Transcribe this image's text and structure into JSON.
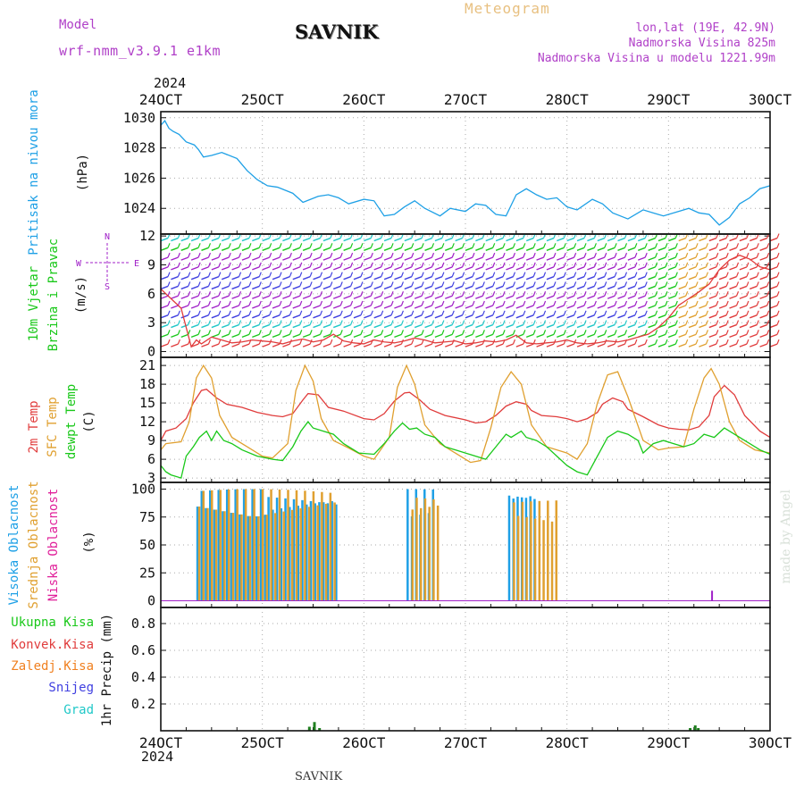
{
  "header": {
    "model_label": "Model",
    "model_name": "wrf-nmm_v3.9.1 e1km",
    "station": "SAVNIK",
    "product": "Meteogram",
    "lonlat": "lon,lat (19E, 42.9N)",
    "elevation": "Nadmorska Visina 825m",
    "model_elevation": "Nadmorska Visina u modelu 1221.99m",
    "year": "2024",
    "footer_station": "SAVNIK",
    "credit": "made by Angel"
  },
  "colors": {
    "pressure": "#1ea0e6",
    "temp2m": "#e03c3c",
    "sfc_temp": "#e0a030",
    "dewpt": "#19c819",
    "high_cloud": "#1ea0e6",
    "mid_cloud": "#e0a030",
    "low_cloud": "#a020c8",
    "total_rain": "#19c819",
    "conv_rain": "#e03c3c",
    "frz_rain": "#f08020",
    "snow": "#4040e0",
    "graupel": "#20c8c8",
    "grid": "#aaaaaa"
  },
  "chart_data": [
    {
      "type": "line",
      "panel": "pressure",
      "ylabel_color": "Pritisak na nivou mora",
      "ylabel_unit": "(hPa)",
      "ylim": [
        1022.3,
        1030.4
      ],
      "yticks": [
        1024,
        1026,
        1028,
        1030
      ],
      "x_ticks": [
        "24OCT",
        "25OCT",
        "26OCT",
        "27OCT",
        "28OCT",
        "29OCT",
        "30OCT"
      ],
      "xlim_days": [
        0,
        6
      ],
      "grid": true,
      "series": [
        {
          "name": "Pritisak na nivou mora",
          "x": [
            0,
            0.04,
            0.08,
            0.12,
            0.18,
            0.25,
            0.33,
            0.37,
            0.42,
            0.5,
            0.6,
            0.75,
            0.85,
            0.95,
            1.05,
            1.15,
            1.3,
            1.4,
            1.55,
            1.65,
            1.75,
            1.85,
            2.0,
            2.1,
            2.2,
            2.3,
            2.4,
            2.5,
            2.6,
            2.75,
            2.85,
            3.0,
            3.1,
            3.2,
            3.3,
            3.4,
            3.5,
            3.6,
            3.7,
            3.8,
            3.9,
            4.0,
            4.1,
            4.25,
            4.35,
            4.45,
            4.6,
            4.75,
            4.85,
            4.95,
            5.1,
            5.2,
            5.3,
            5.4,
            5.5,
            5.6,
            5.7,
            5.8,
            5.9,
            6.0
          ],
          "values": [
            1029.5,
            1029.8,
            1029.3,
            1029.1,
            1028.9,
            1028.4,
            1028.2,
            1027.9,
            1027.4,
            1027.5,
            1027.7,
            1027.3,
            1026.5,
            1025.9,
            1025.5,
            1025.4,
            1025.0,
            1024.4,
            1024.8,
            1024.9,
            1024.7,
            1024.3,
            1024.6,
            1024.5,
            1023.5,
            1023.6,
            1024.1,
            1024.5,
            1024.0,
            1023.5,
            1024.0,
            1023.8,
            1024.3,
            1024.2,
            1023.6,
            1023.5,
            1024.9,
            1025.3,
            1024.9,
            1024.6,
            1024.7,
            1024.1,
            1023.9,
            1024.6,
            1024.3,
            1023.7,
            1023.3,
            1023.9,
            1023.7,
            1023.5,
            1023.8,
            1024.0,
            1023.7,
            1023.6,
            1022.9,
            1023.4,
            1024.3,
            1024.7,
            1025.3,
            1025.5
          ]
        }
      ]
    },
    {
      "type": "line",
      "panel": "wind",
      "ylabel_color_1": "10m Vjetar",
      "ylabel_color_2": "Brzina i Pravac",
      "ylabel_unit": "(m/s)",
      "direction_key": {
        "n": "N",
        "w": "W",
        "e": "E",
        "s": "S"
      },
      "ylim": [
        -0.6,
        12.2
      ],
      "yticks": [
        0,
        3,
        6,
        9,
        12
      ],
      "series": [
        {
          "name": "10m wind speed",
          "x": [
            0,
            0.1,
            0.2,
            0.3,
            0.35,
            0.4,
            0.5,
            0.6,
            0.7,
            0.8,
            0.9,
            1.0,
            1.1,
            1.2,
            1.3,
            1.4,
            1.5,
            1.6,
            1.7,
            1.8,
            1.9,
            2.0,
            2.1,
            2.2,
            2.3,
            2.4,
            2.5,
            2.6,
            2.7,
            2.8,
            2.9,
            3.0,
            3.1,
            3.2,
            3.3,
            3.4,
            3.5,
            3.6,
            3.7,
            3.8,
            3.9,
            4.0,
            4.1,
            4.2,
            4.3,
            4.4,
            4.5,
            4.6,
            4.7,
            4.8,
            4.9,
            5.0,
            5.1,
            5.2,
            5.3,
            5.4,
            5.5,
            5.6,
            5.7,
            5.8,
            5.9,
            6.0
          ],
          "values": [
            6.5,
            5.5,
            4.5,
            0.5,
            1.2,
            0.8,
            1.5,
            1.2,
            0.9,
            1.0,
            1.2,
            1.1,
            1.0,
            0.8,
            1.1,
            1.3,
            1.0,
            1.2,
            1.8,
            1.1,
            0.9,
            0.8,
            1.2,
            1.0,
            0.9,
            1.1,
            1.4,
            1.2,
            0.9,
            1.0,
            1.1,
            0.8,
            0.9,
            1.1,
            1.0,
            1.2,
            1.7,
            0.9,
            0.8,
            0.9,
            1.0,
            1.2,
            0.9,
            0.8,
            0.9,
            1.1,
            1.0,
            1.2,
            1.5,
            1.8,
            2.5,
            3.5,
            4.8,
            5.5,
            6.2,
            7.0,
            8.5,
            9.5,
            10.0,
            9.6,
            8.8,
            8.5
          ]
        }
      ]
    },
    {
      "type": "line",
      "panel": "temperature",
      "labels": [
        "2m Temp",
        "SFC Temp",
        "dewpt Temp"
      ],
      "ylabel_unit": "(C)",
      "ylim": [
        2.3,
        22.3
      ],
      "yticks": [
        3,
        6,
        9,
        12,
        15,
        18,
        21
      ],
      "series": [
        {
          "name": "2m Temp",
          "x": [
            0,
            0.05,
            0.15,
            0.25,
            0.32,
            0.4,
            0.45,
            0.55,
            0.65,
            0.8,
            0.95,
            1.1,
            1.2,
            1.3,
            1.4,
            1.45,
            1.55,
            1.65,
            1.8,
            2.0,
            2.1,
            2.2,
            2.3,
            2.4,
            2.45,
            2.55,
            2.65,
            2.8,
            3.0,
            3.1,
            3.2,
            3.3,
            3.4,
            3.5,
            3.6,
            3.65,
            3.75,
            3.9,
            4.0,
            4.1,
            4.2,
            4.3,
            4.35,
            4.45,
            4.55,
            4.6,
            4.75,
            4.9,
            5.0,
            5.1,
            5.2,
            5.3,
            5.4,
            5.45,
            5.55,
            5.65,
            5.75,
            5.9,
            6.0
          ],
          "values": [
            9.0,
            10.5,
            11.0,
            12.5,
            15.0,
            17.0,
            17.2,
            15.8,
            14.8,
            14.3,
            13.5,
            13.0,
            12.8,
            13.3,
            15.5,
            16.5,
            16.3,
            14.3,
            13.7,
            12.5,
            12.3,
            13.3,
            15.3,
            16.6,
            16.7,
            15.5,
            14.0,
            13.0,
            12.3,
            11.8,
            12.0,
            13.0,
            14.5,
            15.2,
            14.8,
            13.8,
            13.0,
            12.8,
            12.5,
            12.0,
            12.5,
            13.5,
            14.8,
            15.8,
            15.2,
            14.0,
            12.8,
            11.5,
            11.0,
            10.8,
            10.7,
            11.2,
            13.0,
            16.0,
            17.8,
            16.3,
            13.0,
            10.5,
            9.5
          ]
        },
        {
          "name": "SFC Temp",
          "x": [
            0,
            0.05,
            0.2,
            0.28,
            0.35,
            0.42,
            0.5,
            0.58,
            0.7,
            0.85,
            1.0,
            1.1,
            1.25,
            1.33,
            1.42,
            1.5,
            1.58,
            1.7,
            1.85,
            2.0,
            2.1,
            2.25,
            2.33,
            2.42,
            2.5,
            2.6,
            2.75,
            2.9,
            3.05,
            3.15,
            3.25,
            3.35,
            3.45,
            3.55,
            3.65,
            3.8,
            4.0,
            4.1,
            4.2,
            4.3,
            4.4,
            4.5,
            4.6,
            4.75,
            4.9,
            5.0,
            5.15,
            5.25,
            5.35,
            5.42,
            5.5,
            5.6,
            5.7,
            5.85,
            6.0
          ],
          "values": [
            7.5,
            8.5,
            8.8,
            12.0,
            19.0,
            21.0,
            19.0,
            13.0,
            9.5,
            8.0,
            6.5,
            6.2,
            8.5,
            17.0,
            21.0,
            18.5,
            12.5,
            9.0,
            7.8,
            6.5,
            6.0,
            9.5,
            17.5,
            21.0,
            18.0,
            11.5,
            8.5,
            7.0,
            5.5,
            5.8,
            11.0,
            17.5,
            20.0,
            18.0,
            11.5,
            8.0,
            7.0,
            6.0,
            8.5,
            15.0,
            19.5,
            20.0,
            16.0,
            9.0,
            7.5,
            7.8,
            8.0,
            14.0,
            19.0,
            20.5,
            18.0,
            12.0,
            9.0,
            7.5,
            7.0
          ]
        },
        {
          "name": "dewpt Temp",
          "x": [
            0,
            0.05,
            0.1,
            0.2,
            0.25,
            0.32,
            0.38,
            0.45,
            0.5,
            0.55,
            0.62,
            0.7,
            0.8,
            0.95,
            1.1,
            1.2,
            1.3,
            1.38,
            1.45,
            1.5,
            1.6,
            1.7,
            1.8,
            1.95,
            2.1,
            2.2,
            2.3,
            2.38,
            2.45,
            2.52,
            2.6,
            2.7,
            2.8,
            3.0,
            3.1,
            3.2,
            3.3,
            3.4,
            3.45,
            3.55,
            3.6,
            3.7,
            3.8,
            3.9,
            4.0,
            4.1,
            4.2,
            4.3,
            4.4,
            4.5,
            4.6,
            4.7,
            4.75,
            4.85,
            4.95,
            5.05,
            5.15,
            5.25,
            5.35,
            5.45,
            5.55,
            5.65,
            5.75,
            5.9,
            6.0
          ],
          "values": [
            5.0,
            4.0,
            3.5,
            3.0,
            6.5,
            8.0,
            9.5,
            10.5,
            9.0,
            10.5,
            9.0,
            8.5,
            7.5,
            6.5,
            6.0,
            5.8,
            8.0,
            10.5,
            12.0,
            11.0,
            10.5,
            10.0,
            8.5,
            7.0,
            6.8,
            8.5,
            10.5,
            11.8,
            10.8,
            11.0,
            10.0,
            9.5,
            8.0,
            7.0,
            6.5,
            6.0,
            8.0,
            10.0,
            9.5,
            10.5,
            9.5,
            9.0,
            8.0,
            6.5,
            5.0,
            4.0,
            3.5,
            6.5,
            9.5,
            10.5,
            10.0,
            9.0,
            7.0,
            8.5,
            9.0,
            8.5,
            8.0,
            8.5,
            10.0,
            9.5,
            11.0,
            10.0,
            9.0,
            7.5,
            6.8
          ]
        }
      ]
    },
    {
      "type": "bar",
      "panel": "clouds",
      "labels": [
        "Visoka Oblacnost",
        "Srednja Oblacnost",
        "Niska Oblacnost"
      ],
      "ylabel_unit": "(%)",
      "ylim": [
        -6,
        106
      ],
      "yticks": [
        0,
        25,
        50,
        75,
        100
      ],
      "series": [
        {
          "name": "Visoka Oblacnost",
          "segments": [
            [
              0.35,
              1.03,
              100
            ],
            [
              1.05,
              1.75,
              95
            ],
            [
              2.42,
              2.68,
              100
            ],
            [
              3.42,
              3.68,
              100
            ]
          ]
        },
        {
          "name": "Srednja Oblacnost",
          "segments": [
            [
              0.35,
              1.7,
              100
            ],
            [
              2.45,
              2.72,
              95
            ],
            [
              3.45,
              3.9,
              90
            ]
          ]
        },
        {
          "name": "Niska Oblacnost",
          "points": [
            [
              5.42,
              9
            ]
          ]
        }
      ]
    },
    {
      "type": "bar",
      "panel": "precip",
      "labels": [
        "Ukupna Kisa",
        "Konvek.Kisa",
        "Zaledj.Kisa",
        "Snijeg",
        "Grad"
      ],
      "ylabel_unit": "1hr Precip (mm)",
      "ylim": [
        0,
        0.92
      ],
      "yticks": [
        0.2,
        0.4,
        0.6,
        0.8
      ],
      "series": [
        {
          "name": "Ukupna Kisa",
          "points": [
            [
              1.45,
              0.03
            ],
            [
              1.5,
              0.065
            ],
            [
              1.55,
              0.02
            ],
            [
              5.2,
              0.02
            ],
            [
              5.25,
              0.04
            ],
            [
              5.28,
              0.02
            ]
          ]
        }
      ]
    }
  ]
}
